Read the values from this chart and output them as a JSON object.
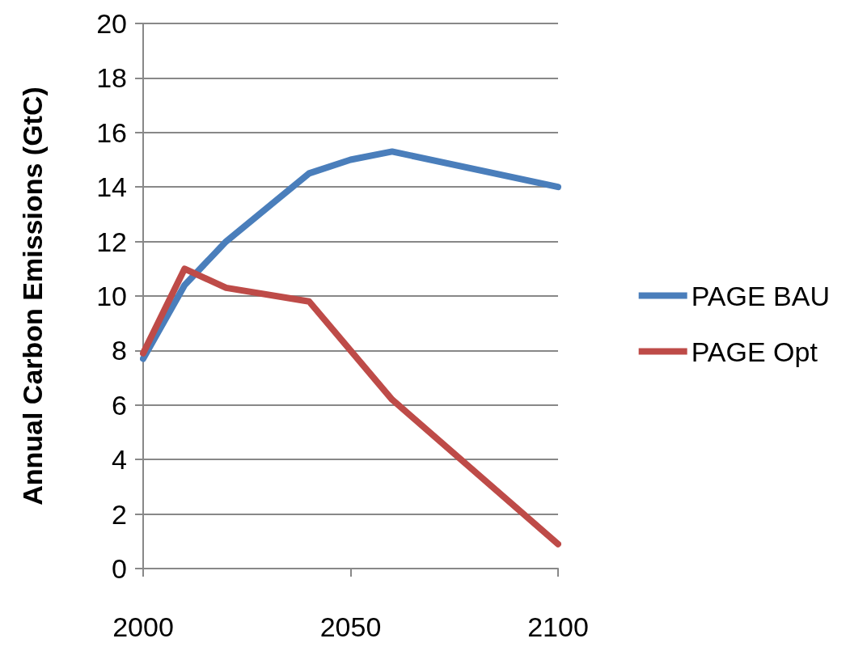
{
  "chart_data": {
    "type": "line",
    "ylabel": "Annual Carbon Emissions (GtC)",
    "xlim": [
      2000,
      2100
    ],
    "xticks": [
      2000,
      2050,
      2100
    ],
    "ylim": [
      0,
      20
    ],
    "yticks": [
      0,
      2,
      4,
      6,
      8,
      10,
      12,
      14,
      16,
      18,
      20
    ],
    "grid": "y",
    "legend": "right",
    "marker": "none",
    "series": [
      {
        "name": "PAGE BAU",
        "color": "#4a7ebb",
        "x": [
          2000,
          2010,
          2020,
          2040,
          2050,
          2060,
          2100
        ],
        "values": [
          7.7,
          10.4,
          12.0,
          14.5,
          15.0,
          15.3,
          14.0
        ]
      },
      {
        "name": "PAGE Opt",
        "color": "#be4b48",
        "x": [
          2000,
          2010,
          2020,
          2040,
          2060,
          2100
        ],
        "values": [
          7.9,
          11.0,
          10.3,
          9.8,
          6.2,
          0.9
        ]
      }
    ]
  }
}
